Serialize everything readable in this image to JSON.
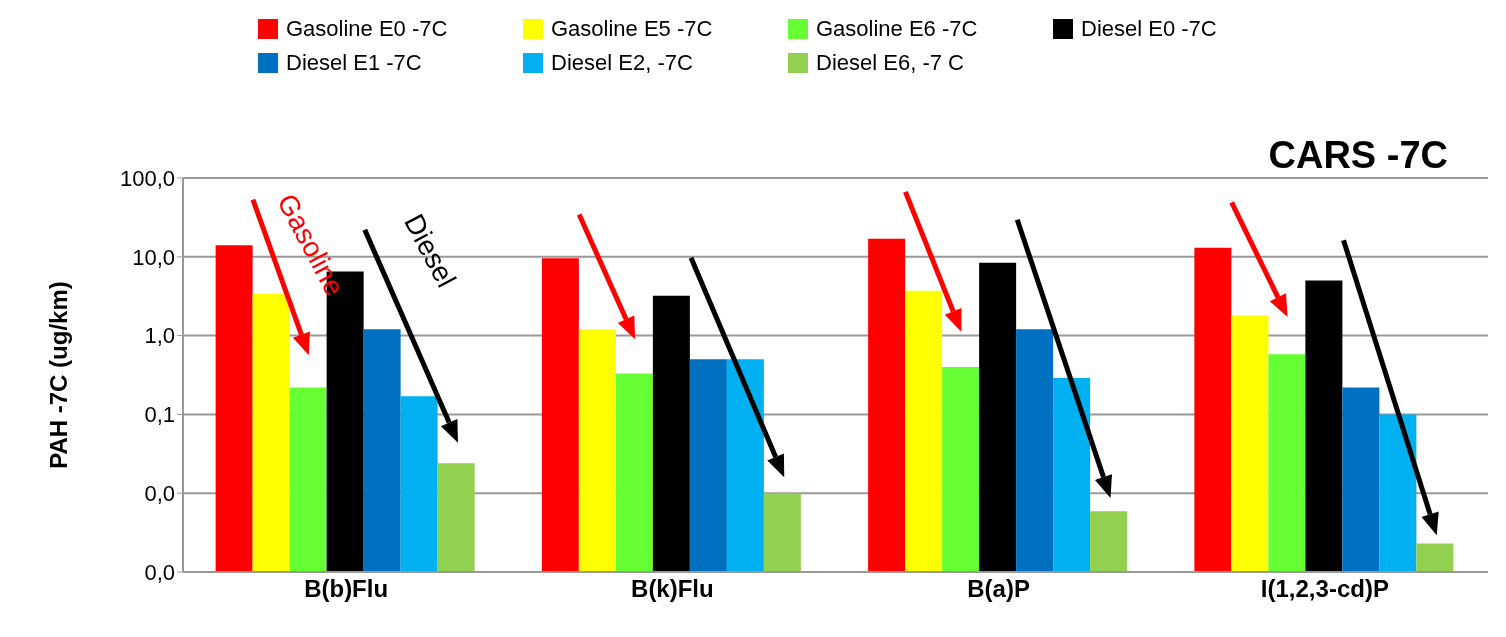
{
  "chart_data": {
    "type": "bar",
    "title": "CARS -7C",
    "ylabel": "PAH -7C (ug/km)",
    "categories": [
      "B(b)Flu",
      "B(k)Flu",
      "B(a)P",
      "I(1,2,3-cd)P"
    ],
    "series": [
      {
        "name": "Gasoline E0 -7C",
        "color": "#ff0000",
        "values": [
          14,
          9.6,
          17,
          13
        ]
      },
      {
        "name": "Gasoline E5 -7C",
        "color": "#ffff00",
        "values": [
          3.4,
          1.2,
          3.7,
          1.8
        ]
      },
      {
        "name": "Gasoline E6 -7C",
        "color": "#66ff33",
        "values": [
          0.22,
          0.33,
          0.4,
          0.58
        ]
      },
      {
        "name": "Diesel E0 -7C",
        "color": "#000000",
        "values": [
          6.5,
          3.2,
          8.4,
          5.0
        ]
      },
      {
        "name": "Diesel E1 -7C",
        "color": "#0070c0",
        "values": [
          1.2,
          0.5,
          1.2,
          0.22
        ]
      },
      {
        "name": "Diesel E2, -7C",
        "color": "#00b0f0",
        "values": [
          0.17,
          0.5,
          0.29,
          0.1
        ]
      },
      {
        "name": "Diesel E6, -7 C",
        "color": "#92d050",
        "values": [
          0.024,
          0.01,
          0.0059,
          0.0023
        ]
      }
    ],
    "log": "y",
    "ylim": [
      0.001,
      100
    ],
    "yticks": [
      {
        "value": 0.001,
        "label": "0,0"
      },
      {
        "value": 0.01,
        "label": "0,0"
      },
      {
        "value": 0.1,
        "label": "0,1"
      },
      {
        "value": 1,
        "label": "1,0"
      },
      {
        "value": 10,
        "label": "10,0"
      },
      {
        "value": 100,
        "label": "100,0"
      }
    ],
    "grid": "y",
    "legend": "top",
    "annotations": [
      "Gasoline",
      "Diesel"
    ]
  }
}
